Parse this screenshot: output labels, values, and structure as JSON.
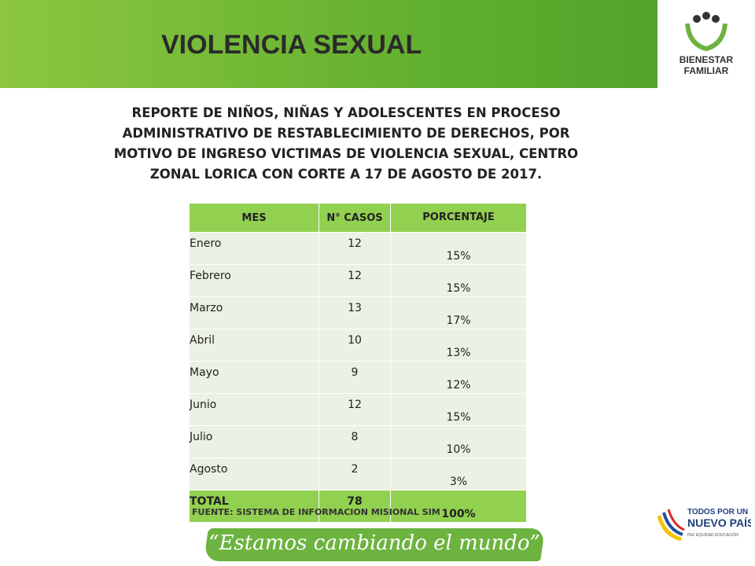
{
  "header": {
    "title": "VIOLENCIA SEXUAL",
    "logo": [
      "BIENESTAR",
      "FAMILIAR"
    ]
  },
  "report": {
    "lines": [
      "REPORTE DE NIÑOS, NIÑAS Y ADOLESCENTES EN PROCESO",
      "ADMINISTRATIVO DE RESTABLECIMIENTO DE DERECHOS, POR",
      "MOTIVO DE INGRESO VICTIMAS DE VIOLENCIA SEXUAL, CENTRO",
      "ZONAL LORICA CON CORTE A 17 DE AGOSTO DE 2017."
    ]
  },
  "table": {
    "headers": [
      "MES",
      "N° CASOS",
      "PORCENTAJE"
    ],
    "rows": [
      [
        "Enero",
        "12",
        "15%"
      ],
      [
        "Febrero",
        "12",
        "15%"
      ],
      [
        "Marzo",
        "13",
        "17%"
      ],
      [
        "Abril",
        "10",
        "13%"
      ],
      [
        "Mayo",
        "9",
        "12%"
      ],
      [
        "Junio",
        "12",
        "15%"
      ],
      [
        "Julio",
        "8",
        "10%"
      ],
      [
        "Agosto",
        "2",
        "3%"
      ]
    ],
    "total": [
      "TOTAL",
      "78",
      "100%"
    ]
  },
  "source": "FUENTE: SISTEMA DE INFORMACION MISIONAL SIM",
  "footer": {
    "slogan": "“Estamos cambiando el mundo”",
    "brand": [
      "TODOS POR UN",
      "NUEVO PAÍS"
    ],
    "motto": "PAZ  EQUIDAD  EDUCACIÓN"
  }
}
